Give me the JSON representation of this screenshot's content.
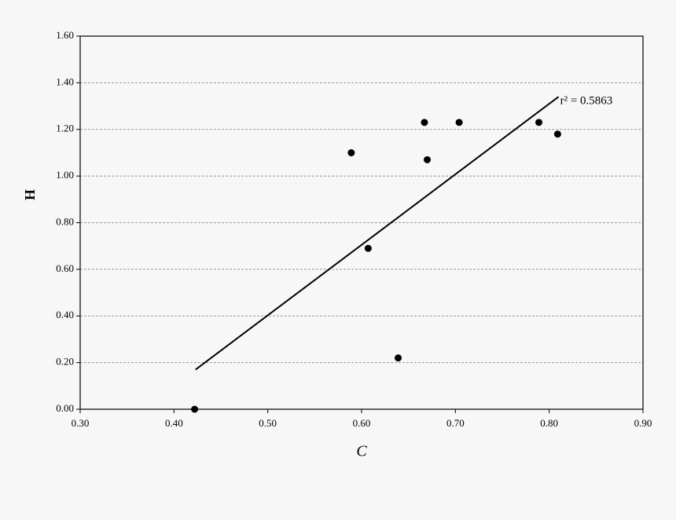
{
  "chart_data": {
    "type": "scatter",
    "x_label": "C",
    "y_label": "H",
    "x": [
      0.422,
      0.589,
      0.607,
      0.639,
      0.667,
      0.67,
      0.704,
      0.789,
      0.809
    ],
    "values": [
      0.0,
      1.1,
      0.69,
      0.22,
      1.23,
      1.07,
      1.23,
      1.23,
      1.18
    ],
    "color": "#000000",
    "trendline": {
      "x": [
        0.423,
        0.81
      ],
      "y": [
        0.17,
        1.34
      ],
      "color": "#000000"
    },
    "annotation": "r² = 0.5863",
    "xlim": [
      0.3,
      0.9
    ],
    "xticks": [
      {
        "value": 0.3,
        "label": "0.30"
      },
      {
        "value": 0.4,
        "label": "0.40"
      },
      {
        "value": 0.5,
        "label": "0.50"
      },
      {
        "value": 0.6,
        "label": "0.60"
      },
      {
        "value": 0.7,
        "label": "0.70"
      },
      {
        "value": 0.8,
        "label": "0.80"
      },
      {
        "value": 0.9,
        "label": "0.90"
      }
    ],
    "ylim": [
      0,
      1.6
    ],
    "yticks": [
      {
        "value": 0,
        "label": "0.00"
      },
      {
        "value": 0.2,
        "label": "0.20"
      },
      {
        "value": 0.4,
        "label": "0.40"
      },
      {
        "value": 0.6,
        "label": "0.60"
      },
      {
        "value": 0.8,
        "label": "0.80"
      },
      {
        "value": 1.0,
        "label": "1.00"
      },
      {
        "value": 1.2,
        "label": "1.20"
      },
      {
        "value": 1.4,
        "label": "1.40"
      },
      {
        "value": 1.6,
        "label": "1.60"
      }
    ],
    "grid": true
  }
}
